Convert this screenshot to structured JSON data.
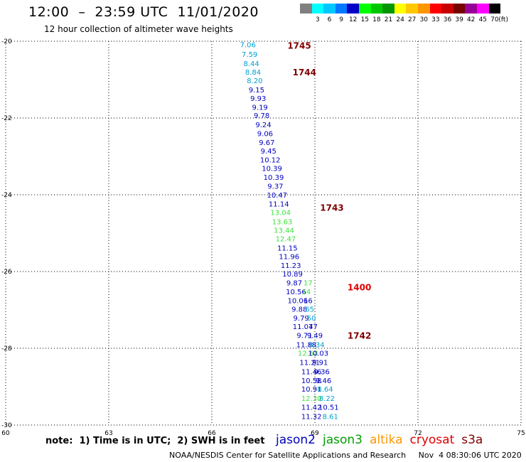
{
  "header": {
    "title": "12:00  –  23:59 UTC  11/01/2020",
    "subtitle": "12 hour collection of altimeter wave heights"
  },
  "legend": {
    "unit_label": "(ft)",
    "items": [
      {
        "label": "",
        "color": "#808080"
      },
      {
        "label": "3",
        "color": "#00ffff"
      },
      {
        "label": "6",
        "color": "#00c8ff"
      },
      {
        "label": "9",
        "color": "#0078ff"
      },
      {
        "label": "12",
        "color": "#0000c8"
      },
      {
        "label": "15",
        "color": "#00ff00"
      },
      {
        "label": "18",
        "color": "#00c800"
      },
      {
        "label": "21",
        "color": "#009600"
      },
      {
        "label": "24",
        "color": "#ffff00"
      },
      {
        "label": "27",
        "color": "#ffc800"
      },
      {
        "label": "30",
        "color": "#ff9600"
      },
      {
        "label": "33",
        "color": "#ff0000"
      },
      {
        "label": "36",
        "color": "#c80000"
      },
      {
        "label": "39",
        "color": "#780000"
      },
      {
        "label": "42",
        "color": "#960096"
      },
      {
        "label": "45",
        "color": "#ff00ff"
      },
      {
        "label": "70",
        "color": "#000000"
      }
    ]
  },
  "chart_data": {
    "type": "scatter",
    "xlim": [
      60,
      75
    ],
    "ylim": [
      -30,
      -20
    ],
    "x_ticks": [
      "60",
      "63",
      "66",
      "69",
      "72",
      "75"
    ],
    "y_ticks": [
      "-20",
      "-22",
      "-24",
      "-26",
      "-28",
      "-30"
    ],
    "grid": true,
    "points": [
      {
        "x": 67.05,
        "y": -20.08,
        "label": "7.06",
        "color": "#00a0d0"
      },
      {
        "x": 67.1,
        "y": -20.33,
        "label": "7.59",
        "color": "#00a0d0"
      },
      {
        "x": 67.15,
        "y": -20.57,
        "label": "8.44",
        "color": "#00a0d0"
      },
      {
        "x": 67.2,
        "y": -20.8,
        "label": "8.84",
        "color": "#00a0d0"
      },
      {
        "x": 67.25,
        "y": -21.02,
        "label": "8.20",
        "color": "#00a0d0"
      },
      {
        "x": 67.3,
        "y": -21.26,
        "label": "9.15",
        "color": "#0000c0"
      },
      {
        "x": 67.35,
        "y": -21.48,
        "label": "9.93",
        "color": "#0000c0"
      },
      {
        "x": 67.4,
        "y": -21.71,
        "label": "9.19",
        "color": "#0000c0"
      },
      {
        "x": 67.45,
        "y": -21.93,
        "label": "9.78",
        "color": "#0000c0"
      },
      {
        "x": 67.5,
        "y": -22.17,
        "label": "9.24",
        "color": "#0000c0"
      },
      {
        "x": 67.55,
        "y": -22.4,
        "label": "9.06",
        "color": "#0000c0"
      },
      {
        "x": 67.6,
        "y": -22.63,
        "label": "9.67",
        "color": "#0000c0"
      },
      {
        "x": 67.65,
        "y": -22.85,
        "label": "9.45",
        "color": "#0000c0"
      },
      {
        "x": 67.7,
        "y": -23.08,
        "label": "10.12",
        "color": "#0000c0"
      },
      {
        "x": 67.75,
        "y": -23.31,
        "label": "10.39",
        "color": "#0000c0"
      },
      {
        "x": 67.8,
        "y": -23.54,
        "label": "10.39",
        "color": "#0000c0"
      },
      {
        "x": 67.85,
        "y": -23.77,
        "label": "9.37",
        "color": "#0000c0"
      },
      {
        "x": 67.9,
        "y": -24.0,
        "label": "10.47",
        "color": "#0000c0"
      },
      {
        "x": 67.95,
        "y": -24.23,
        "label": "11.14",
        "color": "#0000c0"
      },
      {
        "x": 68.0,
        "y": -24.45,
        "label": "13.04",
        "color": "#40e040"
      },
      {
        "x": 68.05,
        "y": -24.69,
        "label": "13.63",
        "color": "#40e040"
      },
      {
        "x": 68.1,
        "y": -24.92,
        "label": "13.44",
        "color": "#40e040"
      },
      {
        "x": 68.15,
        "y": -25.14,
        "label": "12.47",
        "color": "#40e040"
      },
      {
        "x": 68.2,
        "y": -25.38,
        "label": "11.15",
        "color": "#0000c0"
      },
      {
        "x": 68.25,
        "y": -25.6,
        "label": "11.96",
        "color": "#0000c0"
      },
      {
        "x": 68.3,
        "y": -25.83,
        "label": "11.23",
        "color": "#0000c0"
      },
      {
        "x": 68.35,
        "y": -26.06,
        "label": "10.89",
        "color": "#0000c0"
      },
      {
        "x": 68.4,
        "y": -26.29,
        "label": "9.87",
        "color": "#0000c0"
      },
      {
        "x": 68.45,
        "y": -26.52,
        "label": "10.56",
        "color": "#0000c0"
      },
      {
        "x": 68.5,
        "y": -26.75,
        "label": "10.06",
        "color": "#0000c0"
      },
      {
        "x": 68.55,
        "y": -26.97,
        "label": "9.88",
        "color": "#0000c0"
      },
      {
        "x": 68.6,
        "y": -27.2,
        "label": "9.79",
        "color": "#0000c0"
      },
      {
        "x": 68.65,
        "y": -27.43,
        "label": "11.07",
        "color": "#0000c0"
      },
      {
        "x": 68.7,
        "y": -27.66,
        "label": "9.71",
        "color": "#0000c0"
      },
      {
        "x": 68.75,
        "y": -27.9,
        "label": "11.88",
        "color": "#0000c0"
      },
      {
        "x": 68.8,
        "y": -28.12,
        "label": "12.63",
        "color": "#40e040"
      },
      {
        "x": 68.85,
        "y": -28.36,
        "label": "11.21",
        "color": "#0000c0"
      },
      {
        "x": 68.9,
        "y": -28.6,
        "label": "11.46",
        "color": "#0000c0"
      },
      {
        "x": 68.9,
        "y": -28.83,
        "label": "10.58",
        "color": "#0000c0"
      },
      {
        "x": 68.9,
        "y": -29.06,
        "label": "10.91",
        "color": "#0000c0"
      },
      {
        "x": 68.9,
        "y": -29.3,
        "label": "12.30",
        "color": "#40e040"
      },
      {
        "x": 68.9,
        "y": -29.53,
        "label": "11.42",
        "color": "#0000c0"
      },
      {
        "x": 68.9,
        "y": -29.77,
        "label": "11.32",
        "color": "#0000c0"
      },
      {
        "x": 68.8,
        "y": -26.29,
        "label": "17",
        "color": "#40e040"
      },
      {
        "x": 68.75,
        "y": -26.52,
        "label": "14",
        "color": "#40e040"
      },
      {
        "x": 68.8,
        "y": -26.75,
        "label": "16",
        "color": "#0000c0"
      },
      {
        "x": 68.85,
        "y": -26.97,
        "label": "65",
        "color": "#00a0d0"
      },
      {
        "x": 68.9,
        "y": -27.2,
        "label": "50",
        "color": "#00a0d0"
      },
      {
        "x": 68.95,
        "y": -27.43,
        "label": "47",
        "color": "#0000c0"
      },
      {
        "x": 69.0,
        "y": -27.66,
        "label": "9.49",
        "color": "#0000c0"
      },
      {
        "x": 69.05,
        "y": -27.9,
        "label": "8.34",
        "color": "#00a0d0"
      },
      {
        "x": 69.1,
        "y": -28.12,
        "label": "10.03",
        "color": "#0000c0"
      },
      {
        "x": 69.15,
        "y": -28.36,
        "label": "9.91",
        "color": "#0000c0"
      },
      {
        "x": 69.2,
        "y": -28.6,
        "label": "9.36",
        "color": "#0000c0"
      },
      {
        "x": 69.25,
        "y": -28.83,
        "label": "9.46",
        "color": "#0000c0"
      },
      {
        "x": 69.3,
        "y": -29.06,
        "label": "8.64",
        "color": "#00a0d0"
      },
      {
        "x": 69.35,
        "y": -29.3,
        "label": "8.22",
        "color": "#00a0d0"
      },
      {
        "x": 69.4,
        "y": -29.53,
        "label": "10.51",
        "color": "#0000c0"
      },
      {
        "x": 69.45,
        "y": -29.77,
        "label": "8.61",
        "color": "#00a0d0"
      }
    ],
    "time_labels": [
      {
        "x": 68.2,
        "y": -20.1,
        "label": "1745",
        "color": "#800000"
      },
      {
        "x": 68.35,
        "y": -20.8,
        "label": "1744",
        "color": "#800000"
      },
      {
        "x": 69.15,
        "y": -24.32,
        "label": "1743",
        "color": "#800000"
      },
      {
        "x": 69.95,
        "y": -26.4,
        "label": "1400",
        "color": "#e00000"
      },
      {
        "x": 69.95,
        "y": -27.66,
        "label": "1742",
        "color": "#800000"
      }
    ]
  },
  "note": "note:  1) Time is in UTC;  2) SWH is in feet",
  "satellites": [
    {
      "name": "jason2",
      "color": "#0000c0"
    },
    {
      "name": "jason3",
      "color": "#00a000"
    },
    {
      "name": "altika",
      "color": "#ff9600"
    },
    {
      "name": "cryosat",
      "color": "#e00000"
    },
    {
      "name": "s3a",
      "color": "#800000"
    }
  ],
  "footer": "NOAA/NESDIS Center for Satellite Applications and Research     Nov  4 08:30:06 UTC 2020"
}
